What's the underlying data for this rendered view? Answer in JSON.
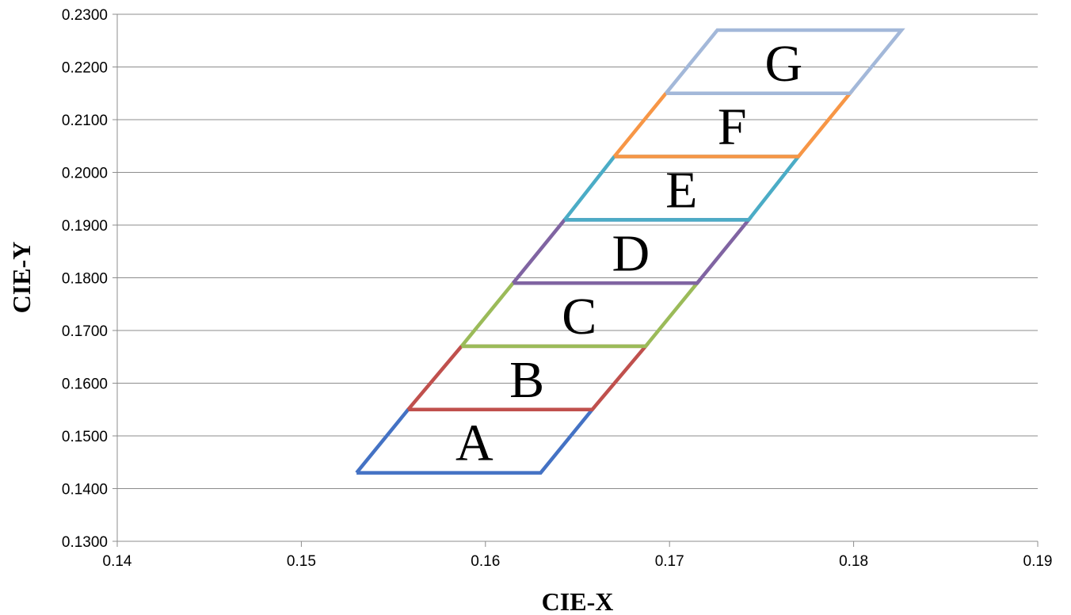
{
  "chart_data": {
    "type": "line",
    "title": "",
    "xlabel": "CIE-X",
    "ylabel": "CIE-Y",
    "xlim": [
      0.14,
      0.19
    ],
    "ylim": [
      0.13,
      0.23
    ],
    "grid": "horizontal",
    "x_ticks": [
      "0.14",
      "0.15",
      "0.16",
      "0.17",
      "0.18",
      "0.19"
    ],
    "y_ticks": [
      "0.1300",
      "0.1400",
      "0.1500",
      "0.1600",
      "0.1700",
      "0.1800",
      "0.1900",
      "0.2000",
      "0.2100",
      "0.2200",
      "0.2300"
    ],
    "series": [
      {
        "label": "A",
        "color": "#4472C4",
        "points": [
          [
            0.153,
            0.143
          ],
          [
            0.163,
            0.143
          ],
          [
            0.1658,
            0.155
          ],
          [
            0.1558,
            0.155
          ],
          [
            0.153,
            0.143
          ]
        ]
      },
      {
        "label": "B",
        "color": "#C0504D",
        "points": [
          [
            0.1558,
            0.155
          ],
          [
            0.1658,
            0.155
          ],
          [
            0.1687,
            0.167
          ],
          [
            0.1587,
            0.167
          ],
          [
            0.1558,
            0.155
          ]
        ]
      },
      {
        "label": "C",
        "color": "#9BBB59",
        "points": [
          [
            0.1587,
            0.167
          ],
          [
            0.1687,
            0.167
          ],
          [
            0.1715,
            0.179
          ],
          [
            0.1615,
            0.179
          ],
          [
            0.1587,
            0.167
          ]
        ]
      },
      {
        "label": "D",
        "color": "#8064A2",
        "points": [
          [
            0.1615,
            0.179
          ],
          [
            0.1715,
            0.179
          ],
          [
            0.1743,
            0.191
          ],
          [
            0.1643,
            0.191
          ],
          [
            0.1615,
            0.179
          ]
        ]
      },
      {
        "label": "E",
        "color": "#4BACC6",
        "points": [
          [
            0.1643,
            0.191
          ],
          [
            0.1743,
            0.191
          ],
          [
            0.177,
            0.203
          ],
          [
            0.167,
            0.203
          ],
          [
            0.1643,
            0.191
          ]
        ]
      },
      {
        "label": "F",
        "color": "#F79646",
        "points": [
          [
            0.167,
            0.203
          ],
          [
            0.177,
            0.203
          ],
          [
            0.1798,
            0.215
          ],
          [
            0.1698,
            0.215
          ],
          [
            0.167,
            0.203
          ]
        ]
      },
      {
        "label": "G",
        "color": "#A3B8D9",
        "points": [
          [
            0.1698,
            0.215
          ],
          [
            0.1798,
            0.215
          ],
          [
            0.1826,
            0.227
          ],
          [
            0.1726,
            0.227
          ],
          [
            0.1698,
            0.215
          ]
        ]
      }
    ]
  }
}
